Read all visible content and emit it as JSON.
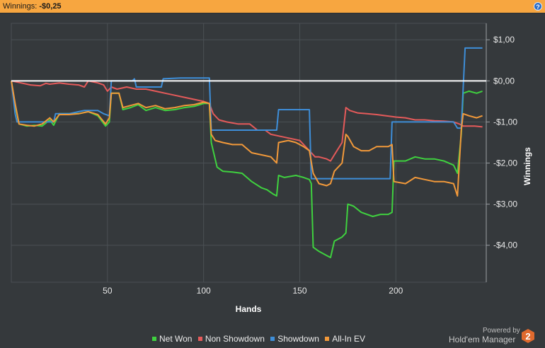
{
  "header": {
    "label": "Winnings:",
    "amount": "-$0,25",
    "help_icon": "?"
  },
  "chart_data": {
    "type": "line",
    "xlabel": "Hands",
    "ylabel": "Winnings",
    "xlim": [
      0,
      247
    ],
    "ylim": [
      -4.9,
      1.4
    ],
    "x_ticks": [
      50,
      100,
      150,
      200
    ],
    "x_tick_labels": [
      "50",
      "100",
      "150",
      "200"
    ],
    "y_ticks": [
      1,
      0,
      -1,
      -2,
      -3,
      -4
    ],
    "y_tick_labels": [
      "$1,00",
      "$0,00",
      "-$1,00",
      "-$2,00",
      "-$3,00",
      "-$4,00"
    ],
    "zero_line": true,
    "grid": true,
    "legend_position": "bottom",
    "series": [
      {
        "name": "Net Won",
        "color": "#3fd13f",
        "points": [
          [
            0,
            0
          ],
          [
            2,
            -0.6
          ],
          [
            4,
            -1.05
          ],
          [
            8,
            -1.1
          ],
          [
            12,
            -1.08
          ],
          [
            16,
            -1.1
          ],
          [
            20,
            -0.95
          ],
          [
            22,
            -1.08
          ],
          [
            25,
            -0.8
          ],
          [
            30,
            -0.8
          ],
          [
            35,
            -0.8
          ],
          [
            40,
            -0.75
          ],
          [
            45,
            -0.85
          ],
          [
            49,
            -1.1
          ],
          [
            51,
            -1.0
          ],
          [
            52,
            -0.3
          ],
          [
            56,
            -0.3
          ],
          [
            58,
            -0.7
          ],
          [
            62,
            -0.65
          ],
          [
            66,
            -0.58
          ],
          [
            70,
            -0.72
          ],
          [
            75,
            -0.65
          ],
          [
            80,
            -0.72
          ],
          [
            85,
            -0.7
          ],
          [
            90,
            -0.65
          ],
          [
            95,
            -0.62
          ],
          [
            98,
            -0.58
          ],
          [
            100,
            -0.55
          ],
          [
            103,
            -0.55
          ],
          [
            104,
            -1.5
          ],
          [
            107,
            -2.1
          ],
          [
            110,
            -2.2
          ],
          [
            115,
            -2.22
          ],
          [
            120,
            -2.25
          ],
          [
            125,
            -2.45
          ],
          [
            130,
            -2.6
          ],
          [
            133,
            -2.65
          ],
          [
            136,
            -2.75
          ],
          [
            138,
            -2.8
          ],
          [
            139,
            -2.3
          ],
          [
            142,
            -2.35
          ],
          [
            148,
            -2.3
          ],
          [
            152,
            -2.35
          ],
          [
            155,
            -2.4
          ],
          [
            156,
            -2.5
          ],
          [
            157,
            -4.05
          ],
          [
            160,
            -4.15
          ],
          [
            164,
            -4.25
          ],
          [
            166,
            -4.3
          ],
          [
            168,
            -3.9
          ],
          [
            172,
            -3.8
          ],
          [
            174,
            -3.7
          ],
          [
            175,
            -3.0
          ],
          [
            178,
            -3.05
          ],
          [
            182,
            -3.2
          ],
          [
            188,
            -3.3
          ],
          [
            192,
            -3.25
          ],
          [
            196,
            -3.25
          ],
          [
            198,
            -3.2
          ],
          [
            199,
            -1.95
          ],
          [
            205,
            -1.95
          ],
          [
            210,
            -1.85
          ],
          [
            215,
            -1.9
          ],
          [
            220,
            -1.9
          ],
          [
            225,
            -1.95
          ],
          [
            230,
            -2.05
          ],
          [
            232,
            -2.25
          ],
          [
            234,
            -1.3
          ],
          [
            235,
            -0.3
          ],
          [
            238,
            -0.25
          ],
          [
            242,
            -0.3
          ],
          [
            245,
            -0.25
          ]
        ]
      },
      {
        "name": "Non Showdown",
        "color": "#e55a5a",
        "points": [
          [
            0,
            0
          ],
          [
            5,
            -0.05
          ],
          [
            10,
            -0.1
          ],
          [
            15,
            -0.12
          ],
          [
            18,
            -0.06
          ],
          [
            20,
            -0.08
          ],
          [
            25,
            -0.05
          ],
          [
            30,
            -0.08
          ],
          [
            35,
            -0.1
          ],
          [
            38,
            -0.15
          ],
          [
            40,
            0
          ],
          [
            45,
            -0.05
          ],
          [
            48,
            -0.1
          ],
          [
            50,
            -0.25
          ],
          [
            52,
            -0.15
          ],
          [
            55,
            -0.2
          ],
          [
            60,
            -0.15
          ],
          [
            65,
            -0.2
          ],
          [
            70,
            -0.2
          ],
          [
            75,
            -0.25
          ],
          [
            80,
            -0.3
          ],
          [
            85,
            -0.35
          ],
          [
            90,
            -0.4
          ],
          [
            95,
            -0.45
          ],
          [
            100,
            -0.5
          ],
          [
            103,
            -0.55
          ],
          [
            105,
            -0.8
          ],
          [
            108,
            -0.95
          ],
          [
            112,
            -1.0
          ],
          [
            118,
            -1.05
          ],
          [
            124,
            -1.05
          ],
          [
            128,
            -1.2
          ],
          [
            132,
            -1.2
          ],
          [
            135,
            -1.3
          ],
          [
            140,
            -1.35
          ],
          [
            145,
            -1.4
          ],
          [
            150,
            -1.45
          ],
          [
            155,
            -1.7
          ],
          [
            158,
            -1.85
          ],
          [
            160,
            -1.85
          ],
          [
            164,
            -1.9
          ],
          [
            166,
            -1.95
          ],
          [
            168,
            -1.8
          ],
          [
            172,
            -1.5
          ],
          [
            174,
            -0.65
          ],
          [
            176,
            -0.72
          ],
          [
            180,
            -0.78
          ],
          [
            185,
            -0.8
          ],
          [
            190,
            -0.82
          ],
          [
            195,
            -0.85
          ],
          [
            200,
            -0.88
          ],
          [
            205,
            -0.9
          ],
          [
            210,
            -0.95
          ],
          [
            215,
            -0.95
          ],
          [
            220,
            -0.97
          ],
          [
            225,
            -0.98
          ],
          [
            230,
            -1.0
          ],
          [
            233,
            -1.05
          ],
          [
            235,
            -1.1
          ],
          [
            238,
            -1.1
          ],
          [
            241,
            -1.1
          ],
          [
            245,
            -1.12
          ]
        ]
      },
      {
        "name": "Showdown",
        "color": "#3e8ed8",
        "points": [
          [
            0,
            0
          ],
          [
            2,
            -0.8
          ],
          [
            3,
            -1.0
          ],
          [
            15,
            -1.0
          ],
          [
            22,
            -1.0
          ],
          [
            23,
            -0.8
          ],
          [
            30,
            -0.8
          ],
          [
            35,
            -0.75
          ],
          [
            38,
            -0.72
          ],
          [
            45,
            -0.72
          ],
          [
            48,
            -0.8
          ],
          [
            51,
            -0.85
          ],
          [
            52,
            0
          ],
          [
            63,
            0
          ],
          [
            64,
            0.05
          ],
          [
            65,
            -0.15
          ],
          [
            78,
            -0.15
          ],
          [
            79,
            0.05
          ],
          [
            88,
            0.07
          ],
          [
            100,
            0.07
          ],
          [
            103,
            0.07
          ],
          [
            104,
            -1.2
          ],
          [
            120,
            -1.2
          ],
          [
            130,
            -1.2
          ],
          [
            138,
            -1.2
          ],
          [
            139,
            -0.7
          ],
          [
            150,
            -0.7
          ],
          [
            155,
            -0.7
          ],
          [
            156,
            -2.38
          ],
          [
            165,
            -2.38
          ],
          [
            175,
            -2.38
          ],
          [
            185,
            -2.38
          ],
          [
            195,
            -2.38
          ],
          [
            197,
            -2.38
          ],
          [
            198,
            -1.0
          ],
          [
            210,
            -1.0
          ],
          [
            230,
            -1.0
          ],
          [
            232,
            -1.15
          ],
          [
            234,
            -1.15
          ],
          [
            236,
            0.8
          ],
          [
            245,
            0.8
          ]
        ]
      },
      {
        "name": "All-In EV",
        "color": "#f2993a",
        "points": [
          [
            0,
            0
          ],
          [
            2,
            -0.55
          ],
          [
            4,
            -1.05
          ],
          [
            8,
            -1.08
          ],
          [
            12,
            -1.1
          ],
          [
            16,
            -1.05
          ],
          [
            20,
            -0.9
          ],
          [
            22,
            -1.0
          ],
          [
            25,
            -0.82
          ],
          [
            30,
            -0.82
          ],
          [
            35,
            -0.8
          ],
          [
            40,
            -0.75
          ],
          [
            45,
            -0.82
          ],
          [
            49,
            -1.05
          ],
          [
            51,
            -0.9
          ],
          [
            52,
            -0.3
          ],
          [
            56,
            -0.3
          ],
          [
            58,
            -0.65
          ],
          [
            62,
            -0.6
          ],
          [
            66,
            -0.55
          ],
          [
            70,
            -0.65
          ],
          [
            75,
            -0.6
          ],
          [
            80,
            -0.68
          ],
          [
            85,
            -0.65
          ],
          [
            90,
            -0.6
          ],
          [
            95,
            -0.58
          ],
          [
            100,
            -0.52
          ],
          [
            103,
            -0.55
          ],
          [
            104,
            -1.3
          ],
          [
            106,
            -1.45
          ],
          [
            110,
            -1.5
          ],
          [
            115,
            -1.55
          ],
          [
            120,
            -1.55
          ],
          [
            125,
            -1.75
          ],
          [
            130,
            -1.8
          ],
          [
            135,
            -1.85
          ],
          [
            138,
            -2.0
          ],
          [
            139,
            -1.5
          ],
          [
            144,
            -1.45
          ],
          [
            148,
            -1.5
          ],
          [
            152,
            -1.6
          ],
          [
            155,
            -1.7
          ],
          [
            157,
            -2.25
          ],
          [
            160,
            -2.5
          ],
          [
            164,
            -2.55
          ],
          [
            166,
            -2.5
          ],
          [
            168,
            -2.2
          ],
          [
            172,
            -2.0
          ],
          [
            174,
            -1.3
          ],
          [
            175,
            -1.35
          ],
          [
            178,
            -1.6
          ],
          [
            182,
            -1.7
          ],
          [
            186,
            -1.7
          ],
          [
            190,
            -1.6
          ],
          [
            196,
            -1.6
          ],
          [
            198,
            -1.55
          ],
          [
            199,
            -2.45
          ],
          [
            205,
            -2.5
          ],
          [
            210,
            -2.35
          ],
          [
            215,
            -2.4
          ],
          [
            220,
            -2.45
          ],
          [
            225,
            -2.45
          ],
          [
            230,
            -2.5
          ],
          [
            232,
            -2.8
          ],
          [
            234,
            -1.2
          ],
          [
            235,
            -0.8
          ],
          [
            238,
            -0.85
          ],
          [
            242,
            -0.9
          ],
          [
            245,
            -0.85
          ]
        ]
      }
    ]
  },
  "legend": {
    "items": [
      "Net Won",
      "Non Showdown",
      "Showdown",
      "All-In EV"
    ]
  },
  "branding": {
    "powered_by": "Powered by",
    "product": "Hold'em Manager",
    "logo_digit": "2",
    "logo_color": "#e06a2e"
  }
}
